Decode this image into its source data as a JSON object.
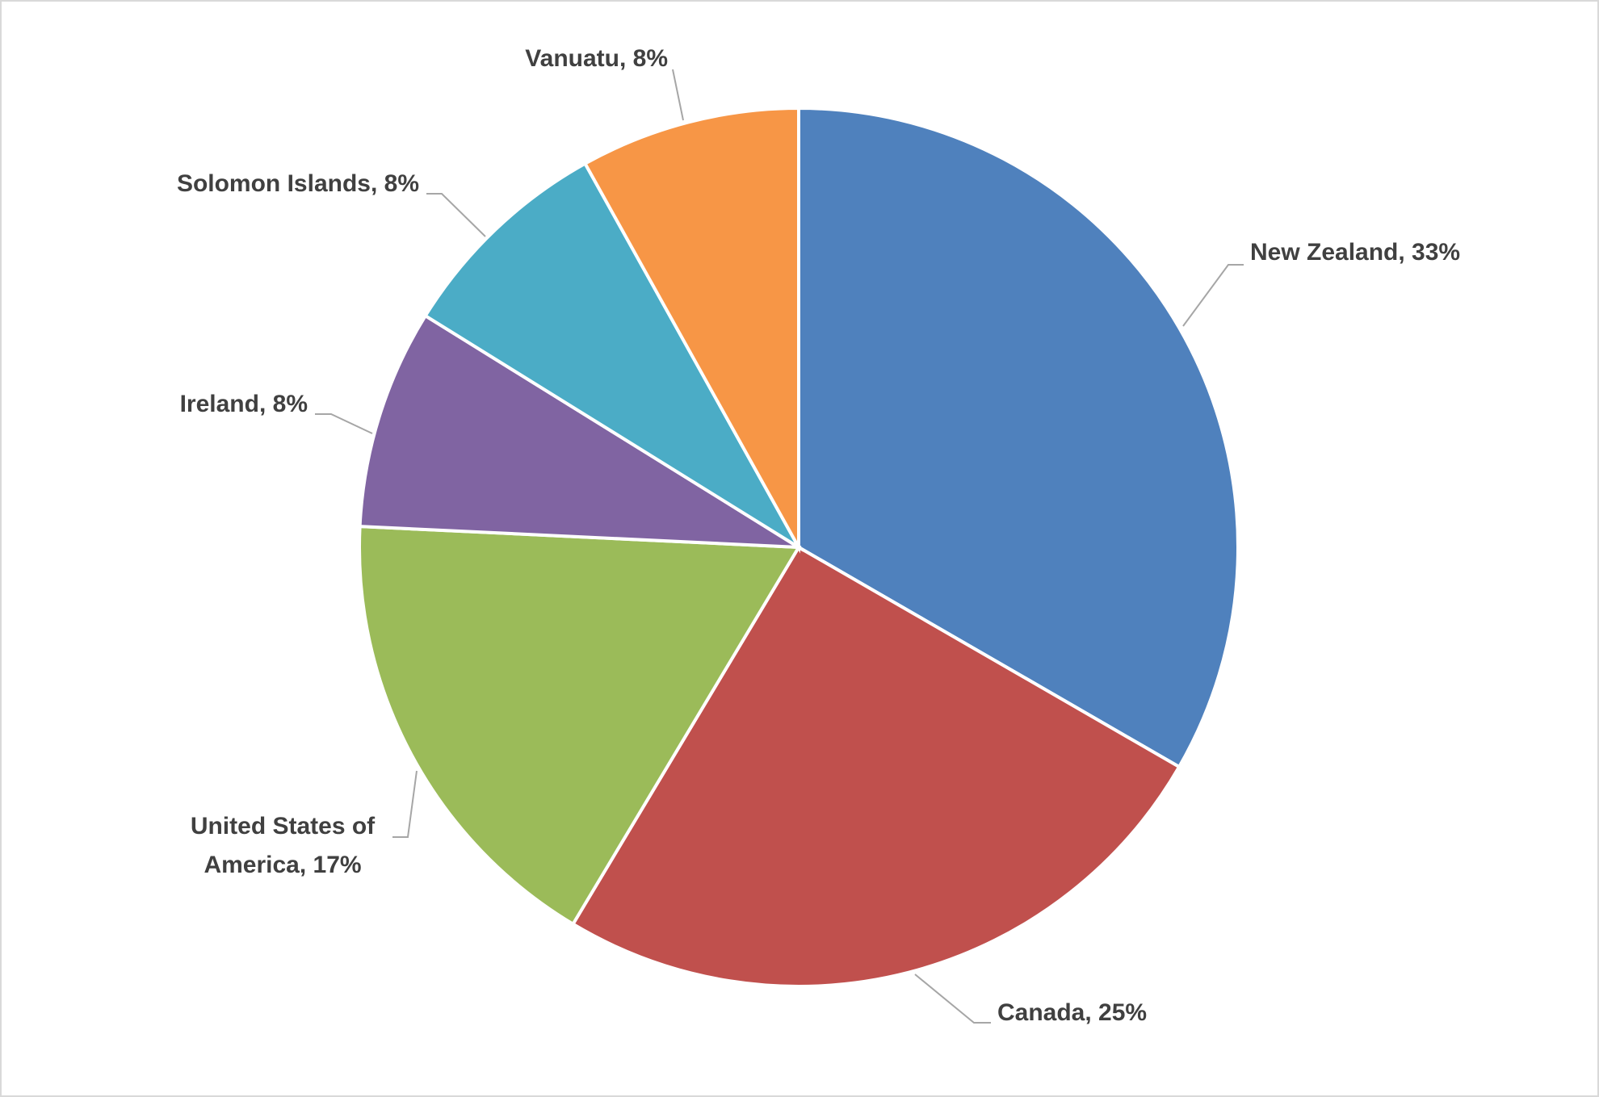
{
  "chart_data": {
    "type": "pie",
    "values": [
      33,
      25,
      17,
      8,
      8,
      8
    ],
    "value_labels": [
      "New Zealand, 33%",
      "Canada, 25%",
      "United States of America, 17%",
      "Ireland, 8%",
      "Solomon Islands, 8%",
      "Vanuatu, 8%"
    ],
    "colors": [
      "#4f81bd",
      "#c0504d",
      "#9bbb59",
      "#8064a2",
      "#4bacc6",
      "#f79646"
    ]
  }
}
